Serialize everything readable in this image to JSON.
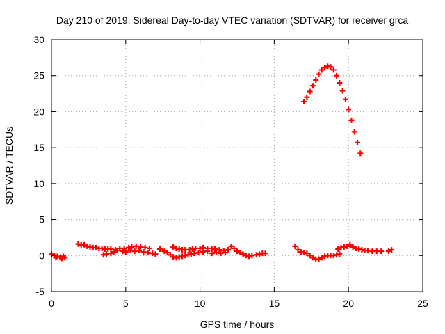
{
  "chart_data": {
    "type": "scatter",
    "title": "Day 210 of 2019, Sidereal Day-to-day VTEC variation (SDTVAR) for receiver grca",
    "xlabel": "GPS time / hours",
    "ylabel": "SDTVAR / TECUs",
    "xlim": [
      0,
      25
    ],
    "ylim": [
      -5,
      30
    ],
    "xticks": [
      "0",
      "5",
      "10",
      "15",
      "20",
      "25"
    ],
    "yticks": [
      "-5",
      "0",
      "5",
      "10",
      "15",
      "20",
      "25",
      "30"
    ],
    "grid": true,
    "marker": "plus",
    "color": "#ff0000",
    "series": [
      {
        "name": "SDTVAR",
        "points": [
          [
            0.0,
            0.2
          ],
          [
            0.2,
            0.0
          ],
          [
            0.3,
            -0.3
          ],
          [
            0.4,
            -0.1
          ],
          [
            0.6,
            -0.2
          ],
          [
            0.7,
            -0.4
          ],
          [
            0.8,
            -0.1
          ],
          [
            0.9,
            -0.3
          ],
          [
            1.8,
            1.6
          ],
          [
            2.0,
            1.5
          ],
          [
            2.2,
            1.5
          ],
          [
            2.4,
            1.3
          ],
          [
            2.6,
            1.2
          ],
          [
            2.8,
            1.1
          ],
          [
            3.0,
            1.1
          ],
          [
            3.2,
            1.0
          ],
          [
            3.4,
            1.0
          ],
          [
            3.6,
            0.9
          ],
          [
            3.8,
            0.9
          ],
          [
            3.5,
            0.1
          ],
          [
            3.7,
            0.2
          ],
          [
            4.0,
            0.3
          ],
          [
            4.2,
            0.5
          ],
          [
            4.4,
            0.7
          ],
          [
            4.0,
            0.9
          ],
          [
            4.3,
            0.8
          ],
          [
            4.6,
            1.0
          ],
          [
            4.9,
            1.0
          ],
          [
            5.2,
            1.1
          ],
          [
            4.8,
            0.6
          ],
          [
            5.0,
            0.5
          ],
          [
            5.3,
            0.7
          ],
          [
            5.6,
            0.6
          ],
          [
            5.9,
            0.7
          ],
          [
            5.4,
            1.2
          ],
          [
            5.7,
            1.3
          ],
          [
            6.0,
            1.2
          ],
          [
            6.3,
            1.1
          ],
          [
            6.6,
            1.0
          ],
          [
            6.2,
            0.5
          ],
          [
            6.5,
            0.4
          ],
          [
            6.8,
            0.3
          ],
          [
            7.0,
            0.2
          ],
          [
            7.3,
            0.9
          ],
          [
            7.6,
            0.6
          ],
          [
            7.8,
            0.4
          ],
          [
            8.0,
            0.1
          ],
          [
            8.2,
            -0.2
          ],
          [
            8.4,
            -0.3
          ],
          [
            8.6,
            -0.2
          ],
          [
            8.8,
            -0.1
          ],
          [
            9.0,
            0.0
          ],
          [
            9.2,
            0.1
          ],
          [
            8.2,
            1.2
          ],
          [
            8.4,
            1.0
          ],
          [
            8.6,
            0.9
          ],
          [
            8.8,
            0.8
          ],
          [
            9.0,
            0.8
          ],
          [
            9.3,
            0.8
          ],
          [
            9.5,
            0.9
          ],
          [
            9.7,
            1.0
          ],
          [
            10.0,
            1.0
          ],
          [
            10.2,
            1.1
          ],
          [
            9.4,
            0.2
          ],
          [
            9.6,
            0.3
          ],
          [
            9.9,
            0.4
          ],
          [
            10.2,
            0.5
          ],
          [
            10.5,
            0.6
          ],
          [
            10.5,
            1.0
          ],
          [
            10.8,
            1.0
          ],
          [
            11.0,
            0.9
          ],
          [
            11.3,
            0.8
          ],
          [
            11.6,
            0.7
          ],
          [
            10.8,
            0.3
          ],
          [
            11.1,
            0.4
          ],
          [
            11.4,
            0.3
          ],
          [
            11.7,
            0.4
          ],
          [
            11.9,
            0.8
          ],
          [
            12.1,
            1.3
          ],
          [
            12.3,
            1.0
          ],
          [
            12.5,
            0.6
          ],
          [
            12.7,
            0.4
          ],
          [
            12.9,
            0.2
          ],
          [
            13.1,
            0.0
          ],
          [
            13.3,
            -0.1
          ],
          [
            13.5,
            0.0
          ],
          [
            13.8,
            0.1
          ],
          [
            14.0,
            0.2
          ],
          [
            14.2,
            0.3
          ],
          [
            14.4,
            0.3
          ],
          [
            16.4,
            1.3
          ],
          [
            16.6,
            0.8
          ],
          [
            16.8,
            0.5
          ],
          [
            17.0,
            0.4
          ],
          [
            17.2,
            0.3
          ],
          [
            17.4,
            0.0
          ],
          [
            17.6,
            -0.3
          ],
          [
            17.8,
            -0.5
          ],
          [
            18.0,
            -0.5
          ],
          [
            18.2,
            -0.3
          ],
          [
            18.4,
            -0.1
          ],
          [
            18.6,
            0.0
          ],
          [
            18.8,
            0.0
          ],
          [
            19.0,
            0.0
          ],
          [
            19.2,
            0.1
          ],
          [
            19.4,
            0.2
          ],
          [
            19.3,
            0.9
          ],
          [
            19.5,
            1.1
          ],
          [
            19.7,
            1.2
          ],
          [
            19.9,
            1.3
          ],
          [
            20.1,
            1.5
          ],
          [
            20.3,
            1.2
          ],
          [
            20.5,
            1.0
          ],
          [
            20.7,
            0.9
          ],
          [
            20.9,
            0.8
          ],
          [
            21.1,
            0.7
          ],
          [
            21.3,
            0.7
          ],
          [
            21.6,
            0.6
          ],
          [
            21.9,
            0.6
          ],
          [
            22.2,
            0.6
          ],
          [
            22.7,
            0.6
          ],
          [
            22.9,
            0.8
          ],
          [
            17.0,
            21.4
          ],
          [
            17.2,
            22.0
          ],
          [
            17.4,
            22.8
          ],
          [
            17.6,
            23.6
          ],
          [
            17.8,
            24.4
          ],
          [
            18.0,
            25.2
          ],
          [
            18.2,
            25.8
          ],
          [
            18.4,
            26.1
          ],
          [
            18.6,
            26.3
          ],
          [
            18.8,
            26.2
          ],
          [
            19.0,
            25.8
          ],
          [
            19.2,
            25.0
          ],
          [
            19.4,
            24.0
          ],
          [
            19.6,
            22.9
          ],
          [
            19.8,
            21.7
          ],
          [
            20.0,
            20.3
          ],
          [
            20.2,
            18.8
          ],
          [
            20.4,
            17.2
          ],
          [
            20.6,
            15.7
          ],
          [
            20.8,
            14.2
          ]
        ]
      }
    ]
  }
}
